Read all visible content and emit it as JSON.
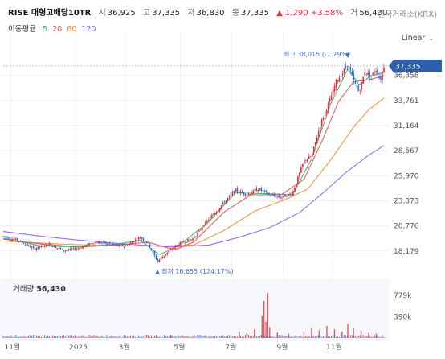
{
  "header": {
    "name": "RISE 대형고배당10TR",
    "open_label": "시",
    "open": "36,925",
    "high_label": "고",
    "high": "37,335",
    "low_label": "저",
    "low": "36,830",
    "close_label": "종",
    "close": "37,335",
    "change_arrow": "▲",
    "change": "1,290",
    "change_pct": "+3.58%",
    "volume_label": "거",
    "volume": "56,430"
  },
  "exchange": "한국거래소(KRX)",
  "moving_average": {
    "label": "이동평균",
    "periods": [
      {
        "period": "5",
        "color": "#3cb371"
      },
      {
        "period": "20",
        "color": "#e05050"
      },
      {
        "period": "60",
        "color": "#f08c3c"
      },
      {
        "period": "120",
        "color": "#8a5cf0"
      }
    ]
  },
  "scale_mode": "Linear",
  "colors": {
    "up": "#e0313f",
    "down": "#2f6fd6",
    "current_price_bg": "#2f5faa",
    "annotation": "#4472c4"
  },
  "chart_data": {
    "type": "candlestick",
    "price_axis": {
      "ticks": [
        "36,358",
        "33,761",
        "31,164",
        "28,567",
        "25,970",
        "23,373",
        "20,776",
        "18,179"
      ],
      "range": [
        16000,
        39000
      ]
    },
    "x_axis": {
      "ticks": [
        "11월",
        "2025",
        "3월",
        "5월",
        "7월",
        "9월",
        "11월"
      ]
    },
    "current_price": "37,335",
    "high_annotation": {
      "label": "최고",
      "value": "38,015",
      "pct": "(-1.79%)",
      "arrow": "▼"
    },
    "low_annotation": {
      "label": "최저",
      "value": "16,655",
      "pct": "(124.17%)",
      "arrow": "▲"
    },
    "close_path": [
      {
        "x": 0,
        "y": 19700
      },
      {
        "x": 0.04,
        "y": 19300
      },
      {
        "x": 0.08,
        "y": 18400
      },
      {
        "x": 0.12,
        "y": 18900
      },
      {
        "x": 0.16,
        "y": 18200
      },
      {
        "x": 0.2,
        "y": 18500
      },
      {
        "x": 0.24,
        "y": 19100
      },
      {
        "x": 0.28,
        "y": 18900
      },
      {
        "x": 0.32,
        "y": 18700
      },
      {
        "x": 0.36,
        "y": 19600
      },
      {
        "x": 0.38,
        "y": 19000
      },
      {
        "x": 0.405,
        "y": 17100
      },
      {
        "x": 0.43,
        "y": 18000
      },
      {
        "x": 0.46,
        "y": 18900
      },
      {
        "x": 0.5,
        "y": 19500
      },
      {
        "x": 0.54,
        "y": 21500
      },
      {
        "x": 0.58,
        "y": 23200
      },
      {
        "x": 0.61,
        "y": 24500
      },
      {
        "x": 0.64,
        "y": 24000
      },
      {
        "x": 0.67,
        "y": 24600
      },
      {
        "x": 0.7,
        "y": 24000
      },
      {
        "x": 0.73,
        "y": 23700
      },
      {
        "x": 0.76,
        "y": 24200
      },
      {
        "x": 0.79,
        "y": 27500
      },
      {
        "x": 0.81,
        "y": 28000
      },
      {
        "x": 0.835,
        "y": 31500
      },
      {
        "x": 0.86,
        "y": 34000
      },
      {
        "x": 0.875,
        "y": 35800
      },
      {
        "x": 0.89,
        "y": 36500
      },
      {
        "x": 0.905,
        "y": 37600
      },
      {
        "x": 0.92,
        "y": 35800
      },
      {
        "x": 0.935,
        "y": 34600
      },
      {
        "x": 0.95,
        "y": 36800
      },
      {
        "x": 0.965,
        "y": 36200
      },
      {
        "x": 0.98,
        "y": 37000
      },
      {
        "x": 0.99,
        "y": 35800
      },
      {
        "x": 1.0,
        "y": 37335
      }
    ],
    "ma_paths": {
      "ma5": [
        {
          "x": 0,
          "y": 19500
        },
        {
          "x": 0.1,
          "y": 18700
        },
        {
          "x": 0.2,
          "y": 18600
        },
        {
          "x": 0.3,
          "y": 18900
        },
        {
          "x": 0.36,
          "y": 19300
        },
        {
          "x": 0.41,
          "y": 17800
        },
        {
          "x": 0.46,
          "y": 18700
        },
        {
          "x": 0.54,
          "y": 21200
        },
        {
          "x": 0.61,
          "y": 24200
        },
        {
          "x": 0.7,
          "y": 24100
        },
        {
          "x": 0.76,
          "y": 24000
        },
        {
          "x": 0.81,
          "y": 27700
        },
        {
          "x": 0.86,
          "y": 33400
        },
        {
          "x": 0.905,
          "y": 37000
        },
        {
          "x": 0.935,
          "y": 35400
        },
        {
          "x": 0.965,
          "y": 36300
        },
        {
          "x": 1.0,
          "y": 36700
        }
      ],
      "ma20": [
        {
          "x": 0,
          "y": 19400
        },
        {
          "x": 0.1,
          "y": 18900
        },
        {
          "x": 0.2,
          "y": 18600
        },
        {
          "x": 0.3,
          "y": 18800
        },
        {
          "x": 0.38,
          "y": 19100
        },
        {
          "x": 0.45,
          "y": 18300
        },
        {
          "x": 0.5,
          "y": 19100
        },
        {
          "x": 0.58,
          "y": 22200
        },
        {
          "x": 0.65,
          "y": 24000
        },
        {
          "x": 0.73,
          "y": 24000
        },
        {
          "x": 0.79,
          "y": 25600
        },
        {
          "x": 0.84,
          "y": 29800
        },
        {
          "x": 0.88,
          "y": 33600
        },
        {
          "x": 0.92,
          "y": 35700
        },
        {
          "x": 0.96,
          "y": 35900
        },
        {
          "x": 1.0,
          "y": 36300
        }
      ],
      "ma60": [
        {
          "x": 0,
          "y": 19200
        },
        {
          "x": 0.15,
          "y": 18900
        },
        {
          "x": 0.3,
          "y": 18700
        },
        {
          "x": 0.42,
          "y": 18700
        },
        {
          "x": 0.5,
          "y": 18800
        },
        {
          "x": 0.58,
          "y": 20300
        },
        {
          "x": 0.66,
          "y": 22300
        },
        {
          "x": 0.74,
          "y": 23500
        },
        {
          "x": 0.8,
          "y": 24600
        },
        {
          "x": 0.86,
          "y": 27600
        },
        {
          "x": 0.92,
          "y": 31000
        },
        {
          "x": 0.96,
          "y": 32800
        },
        {
          "x": 1.0,
          "y": 34000
        }
      ],
      "ma120": [
        {
          "x": 0,
          "y": 20200
        },
        {
          "x": 0.1,
          "y": 19700
        },
        {
          "x": 0.2,
          "y": 19300
        },
        {
          "x": 0.32,
          "y": 18900
        },
        {
          "x": 0.44,
          "y": 18600
        },
        {
          "x": 0.54,
          "y": 18800
        },
        {
          "x": 0.62,
          "y": 19600
        },
        {
          "x": 0.7,
          "y": 20600
        },
        {
          "x": 0.78,
          "y": 22200
        },
        {
          "x": 0.84,
          "y": 24200
        },
        {
          "x": 0.9,
          "y": 26300
        },
        {
          "x": 0.96,
          "y": 28100
        },
        {
          "x": 1.0,
          "y": 29100
        }
      ]
    },
    "volume": {
      "label": "거래량",
      "value": "56,430",
      "axis_ticks": [
        "779k",
        "390k"
      ],
      "range": [
        0,
        1000000
      ],
      "spikes": [
        {
          "x": 0.44,
          "v": 60000
        },
        {
          "x": 0.62,
          "v": 120000
        },
        {
          "x": 0.64,
          "v": 90000
        },
        {
          "x": 0.66,
          "v": 160000
        },
        {
          "x": 0.68,
          "v": 420000
        },
        {
          "x": 0.685,
          "v": 680000
        },
        {
          "x": 0.69,
          "v": 300000
        },
        {
          "x": 0.695,
          "v": 820000
        },
        {
          "x": 0.7,
          "v": 200000
        },
        {
          "x": 0.72,
          "v": 100000
        },
        {
          "x": 0.75,
          "v": 80000
        },
        {
          "x": 0.79,
          "v": 120000
        },
        {
          "x": 0.81,
          "v": 180000
        },
        {
          "x": 0.83,
          "v": 140000
        },
        {
          "x": 0.85,
          "v": 220000
        },
        {
          "x": 0.87,
          "v": 160000
        },
        {
          "x": 0.89,
          "v": 120000
        },
        {
          "x": 0.905,
          "v": 260000
        },
        {
          "x": 0.92,
          "v": 180000
        },
        {
          "x": 0.94,
          "v": 140000
        },
        {
          "x": 0.96,
          "v": 100000
        },
        {
          "x": 0.98,
          "v": 80000
        }
      ]
    }
  }
}
